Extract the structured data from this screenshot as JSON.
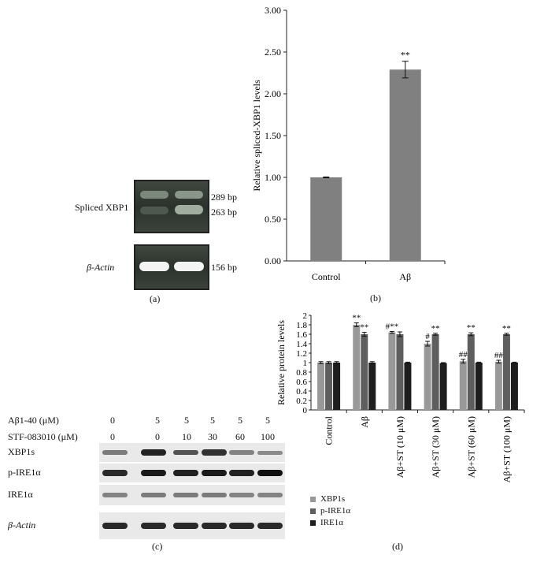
{
  "panel_a": {
    "caption": "(a)",
    "row1_label": "Spliced XBP1",
    "row1_bp_upper": "289 bp",
    "row1_bp_lower": "263 bp",
    "row2_label": "β-Actin",
    "row2_bp": "156 bp"
  },
  "panel_b_caption": "(b)",
  "panel_c": {
    "caption": "(c)",
    "abeta_label": "Aβ1-40 (μM)",
    "stf_label": "STF-083010 (μM)",
    "abeta_values": [
      "0",
      "5",
      "5",
      "5",
      "5",
      "5"
    ],
    "stf_values": [
      "0",
      "0",
      "10",
      "30",
      "60",
      "100"
    ],
    "rows": [
      {
        "label": "XBP1s",
        "intensity": [
          0.35,
          0.9,
          0.6,
          0.8,
          0.3,
          0.25
        ]
      },
      {
        "label": "p-IRE1α",
        "intensity": [
          0.85,
          0.95,
          0.9,
          0.95,
          0.9,
          1.0
        ]
      },
      {
        "label": "IRE1α",
        "intensity": [
          0.3,
          0.35,
          0.35,
          0.35,
          0.3,
          0.3
        ]
      },
      {
        "label": "β-Actin",
        "intensity": [
          0.85,
          0.85,
          0.85,
          0.85,
          0.85,
          0.85
        ]
      }
    ]
  },
  "panel_d_caption": "(d)",
  "chart_data": [
    {
      "type": "bar",
      "ylabel": "Relative spliced-XBP1 levels",
      "categories": [
        "Control",
        "Aβ"
      ],
      "values": [
        1.0,
        2.29
      ],
      "errors": [
        0.005,
        0.1
      ],
      "annotations": [
        "",
        "**"
      ],
      "ylim": [
        0,
        3.0
      ],
      "yticks": [
        "0.00",
        "0.50",
        "1.00",
        "1.50",
        "2.00",
        "2.50",
        "3.00"
      ],
      "grid": false,
      "color": "#808080"
    },
    {
      "type": "bar",
      "ylabel": "Relative protein levels",
      "categories": [
        "Control",
        "Aβ",
        "Aβ+ST (10 μM)",
        "Aβ+ST (30 μM)",
        "Aβ+ST (60 μM)",
        "Aβ+ST (100 μM)"
      ],
      "series": [
        {
          "name": "XBP1s",
          "values": [
            1.0,
            1.8,
            1.64,
            1.4,
            1.03,
            1.02
          ],
          "errors": [
            0.02,
            0.04,
            0.02,
            0.05,
            0.04,
            0.03
          ],
          "color": "#999999"
        },
        {
          "name": "p-IRE1α",
          "values": [
            1.0,
            1.6,
            1.6,
            1.6,
            1.6,
            1.6
          ],
          "errors": [
            0.02,
            0.04,
            0.05,
            0.02,
            0.03,
            0.02
          ],
          "color": "#5e5e5e"
        },
        {
          "name": "IRE1α",
          "values": [
            1.0,
            1.0,
            1.0,
            0.99,
            1.0,
            1.0
          ],
          "errors": [
            0.02,
            0.02,
            0.01,
            0.01,
            0.01,
            0.01
          ],
          "color": "#1e1e1e"
        }
      ],
      "annotations": [
        {
          "category": 1,
          "series": 0,
          "text": "**"
        },
        {
          "category": 1,
          "series": 1,
          "text": "**"
        },
        {
          "category": 2,
          "series": 0,
          "text": "#**"
        },
        {
          "category": 3,
          "series": 0,
          "text": "#"
        },
        {
          "category": 3,
          "series": 1,
          "text": "**"
        },
        {
          "category": 4,
          "series": 0,
          "text": "##"
        },
        {
          "category": 4,
          "series": 1,
          "text": "**"
        },
        {
          "category": 5,
          "series": 0,
          "text": "##"
        },
        {
          "category": 5,
          "series": 1,
          "text": "**"
        }
      ],
      "ylim": [
        0,
        2
      ],
      "yticks": [
        "0",
        "0.2",
        "0.4",
        "0.6",
        "0.8",
        "1",
        "1.2",
        "1.4",
        "1.6",
        "1.8",
        "2"
      ],
      "legend_position": "bottom-left",
      "grid": false
    }
  ]
}
